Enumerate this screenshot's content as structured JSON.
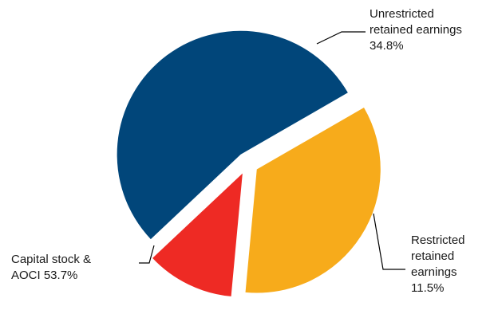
{
  "chart_data": {
    "type": "pie",
    "title": "",
    "slices": [
      {
        "name_lines": [
          "Unrestricted",
          "retained earnings"
        ],
        "value_label": "34.8%",
        "value": 34.8,
        "color": "#F7AB1B"
      },
      {
        "name_lines": [
          "Restricted",
          "retained",
          "earnings"
        ],
        "value_label": "11.5%",
        "value": 11.5,
        "color": "#EE2A24"
      },
      {
        "name_lines": [
          "Capital stock &"
        ],
        "value_label": "AOCI 53.7%",
        "value": 53.7,
        "color": "#01467A"
      }
    ],
    "exploded": true,
    "legend": "none",
    "leader_line_color": "#000000"
  }
}
